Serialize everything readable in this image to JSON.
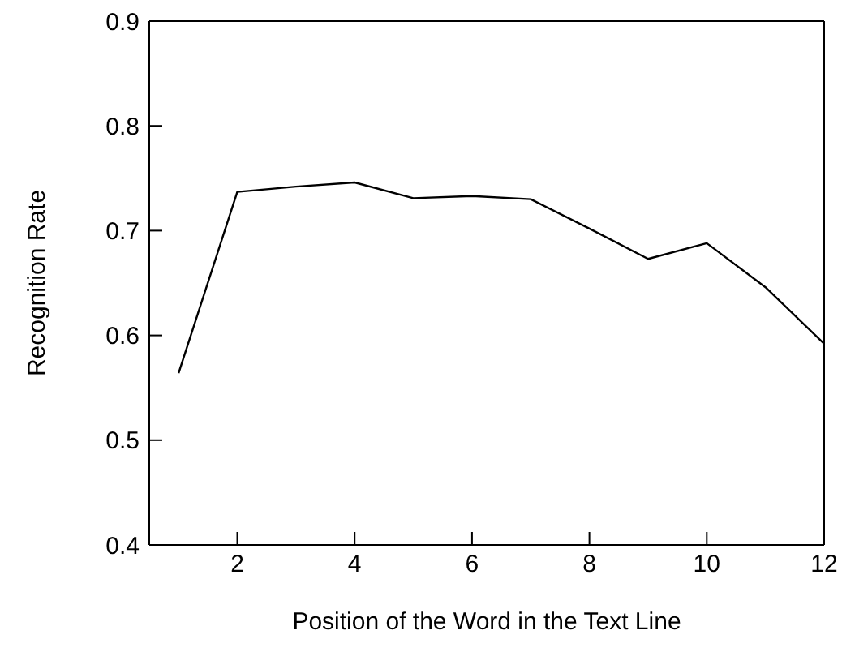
{
  "chart_data": {
    "type": "line",
    "xlabel": "Position of the Word in the Text Line",
    "ylabel": "Recognition Rate",
    "x": [
      1,
      2,
      3,
      4,
      5,
      6,
      7,
      8,
      9,
      10,
      11,
      12
    ],
    "series": [
      {
        "color": "#000000",
        "values": [
          0.564,
          0.737,
          0.742,
          0.746,
          0.731,
          0.733,
          0.73,
          0.702,
          0.673,
          0.688,
          0.646,
          0.592
        ]
      }
    ],
    "xlim": [
      0.5,
      12
    ],
    "xticks": [
      2,
      4,
      6,
      8,
      10,
      12
    ],
    "ylim": [
      0.4,
      0.9
    ],
    "yticks": [
      0.4,
      0.5,
      0.6,
      0.7,
      0.8,
      0.9
    ],
    "grid": false,
    "legend": false,
    "marker": "none",
    "line_style": "solid"
  }
}
